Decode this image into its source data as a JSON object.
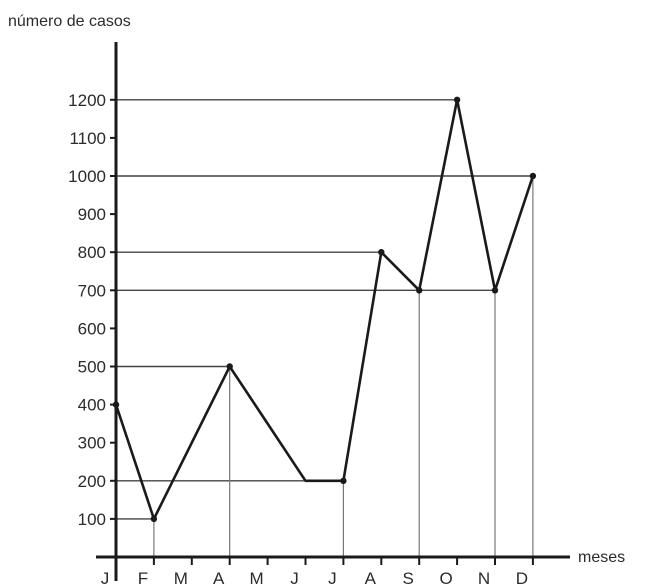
{
  "chart_data": {
    "type": "line",
    "ylabel": "número de casos",
    "xlabel": "meses",
    "categories": [
      "J",
      "F",
      "M",
      "A",
      "M",
      "J",
      "J",
      "A",
      "S",
      "O",
      "N",
      "D"
    ],
    "y_ticks": [
      100,
      200,
      300,
      400,
      500,
      600,
      700,
      800,
      900,
      1000,
      1100,
      1200
    ],
    "ylim": [
      0,
      1300
    ],
    "series": [
      {
        "values": [
          400,
          100,
          300,
          500,
          350,
          200,
          200,
          800,
          700,
          1200,
          700,
          1000
        ],
        "marked": [
          true,
          true,
          false,
          true,
          false,
          false,
          true,
          true,
          true,
          true,
          true,
          true
        ]
      }
    ],
    "reference_lines": [
      {
        "value": 100,
        "from": 0,
        "to": 1
      },
      {
        "value": 200,
        "from": 0,
        "to": 6
      },
      {
        "value": 500,
        "from": 0,
        "to": 3
      },
      {
        "value": 700,
        "from": 0,
        "to": 10
      },
      {
        "value": 800,
        "from": 0,
        "to": 7
      },
      {
        "value": 1000,
        "from": 0,
        "to": 11
      },
      {
        "value": 1200,
        "from": 0,
        "to": 9
      }
    ],
    "drop_lines": [
      1,
      3,
      6,
      8,
      10,
      11
    ],
    "grid": false,
    "legend": "none"
  }
}
